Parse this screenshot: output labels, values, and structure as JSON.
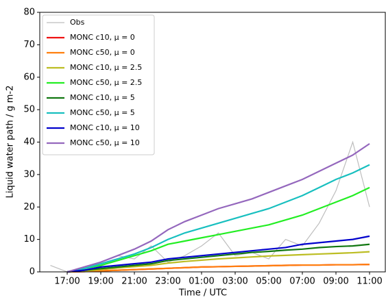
{
  "chart_data": {
    "type": "line",
    "x_label": "Time / UTC",
    "y_label": "Liquid water path / g m-2",
    "x": [
      "16:00",
      "17:00",
      "18:00",
      "19:00",
      "20:00",
      "21:00",
      "22:00",
      "23:00",
      "00:00",
      "01:00",
      "02:00",
      "03:00",
      "04:00",
      "05:00",
      "06:00",
      "07:00",
      "08:00",
      "09:00",
      "10:00",
      "11:00"
    ],
    "xticks": [
      "17:00",
      "19:00",
      "21:00",
      "23:00",
      "01:00",
      "03:00",
      "05:00",
      "07:00",
      "09:00",
      "11:00"
    ],
    "ylim": [
      0,
      80
    ],
    "yticks": [
      0,
      10,
      20,
      30,
      40,
      50,
      60,
      70,
      80
    ],
    "legend": "upper left",
    "series": [
      {
        "name": "Obs",
        "color": "#bdbdbd",
        "values": [
          2,
          0,
          1,
          3,
          5,
          4,
          8,
          3,
          5,
          8,
          12,
          5,
          6,
          4,
          10,
          8,
          15,
          25,
          40,
          20
        ]
      },
      {
        "name": "MONC c10, μ = 0",
        "color": "#ee1111",
        "values": [
          null,
          0,
          0.1,
          0.3,
          0.5,
          0.7,
          0.9,
          1.1,
          1.3,
          1.5,
          1.6,
          1.7,
          1.8,
          1.9,
          2,
          2.1,
          2.1,
          2.2,
          2.2,
          2.3
        ]
      },
      {
        "name": "MONC c50, μ = 0",
        "color": "#ff7f0e",
        "values": [
          null,
          0,
          0.1,
          0.3,
          0.5,
          0.7,
          0.9,
          1.1,
          1.3,
          1.5,
          1.6,
          1.7,
          1.8,
          1.9,
          2,
          2.1,
          2.1,
          2.2,
          2.2,
          2.3
        ]
      },
      {
        "name": "MONC c10, μ = 2.5",
        "color": "#bcbd22",
        "values": [
          null,
          0,
          0.3,
          0.7,
          1.2,
          1.6,
          2,
          2.7,
          3.2,
          3.6,
          4,
          4.3,
          4.6,
          4.9,
          5.1,
          5.3,
          5.5,
          5.7,
          5.9,
          6.2
        ]
      },
      {
        "name": "MONC c50, μ = 2.5",
        "color": "#22ee22",
        "values": [
          null,
          0,
          1,
          2,
          3.5,
          5,
          6.5,
          8.5,
          9.5,
          10.5,
          11.5,
          12.5,
          13.5,
          14.5,
          16,
          17.5,
          19.5,
          21.5,
          23.5,
          26
        ]
      },
      {
        "name": "MONC c10, μ = 5",
        "color": "#117711",
        "values": [
          null,
          0,
          0.5,
          1,
          1.5,
          2,
          2.5,
          3.5,
          4,
          4.5,
          5,
          5.5,
          6,
          6.3,
          6.7,
          7,
          7.5,
          7.8,
          8,
          8.5
        ]
      },
      {
        "name": "MONC c50, μ = 5",
        "color": "#17bfbf",
        "values": [
          null,
          0,
          1,
          2.5,
          4,
          5.5,
          7.5,
          10,
          12,
          13.5,
          15,
          16.5,
          18,
          19.5,
          21.5,
          23.5,
          26,
          28.5,
          30.5,
          33
        ]
      },
      {
        "name": "MONC c10, μ = 10",
        "color": "#0000cc",
        "values": [
          null,
          0,
          0.5,
          1.5,
          2,
          2.5,
          3,
          4,
          4.5,
          5,
          5.5,
          6,
          6.5,
          7,
          7.5,
          8.5,
          9,
          9.5,
          10,
          11
        ]
      },
      {
        "name": "MONC c50, μ = 10",
        "color": "#9467bd",
        "values": [
          null,
          0,
          1.5,
          3,
          5,
          7,
          9.5,
          13,
          15.5,
          17.5,
          19.5,
          21,
          22.5,
          24.5,
          26.5,
          28.5,
          31,
          33.5,
          36,
          39.5
        ]
      }
    ]
  }
}
